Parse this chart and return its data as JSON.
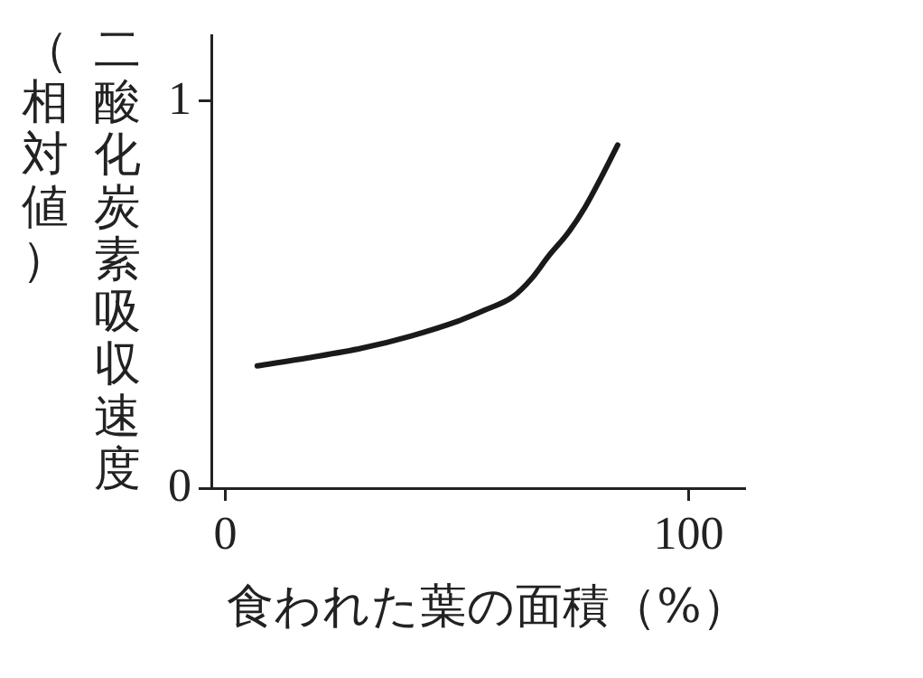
{
  "chart_data": {
    "type": "line",
    "xlabel": "食われた葉の面積（%）",
    "ylabel": "二酸化炭素吸収速度（相対値）",
    "x": [
      6.9,
      18,
      29.6,
      40,
      50.3,
      56,
      62,
      66,
      69.8,
      74,
      77.6,
      81,
      84.7
    ],
    "values": [
      0.316,
      0.337,
      0.362,
      0.393,
      0.432,
      0.46,
      0.494,
      0.54,
      0.6,
      0.66,
      0.725,
      0.8,
      0.887
    ],
    "color": "#1a1a1a",
    "xlim": [
      -3,
      112
    ],
    "ylim": [
      0,
      1.17
    ],
    "xticks": [
      0,
      100
    ],
    "yticks": [
      0,
      1
    ],
    "legend": false,
    "marker": "none",
    "line_style": "solid"
  }
}
